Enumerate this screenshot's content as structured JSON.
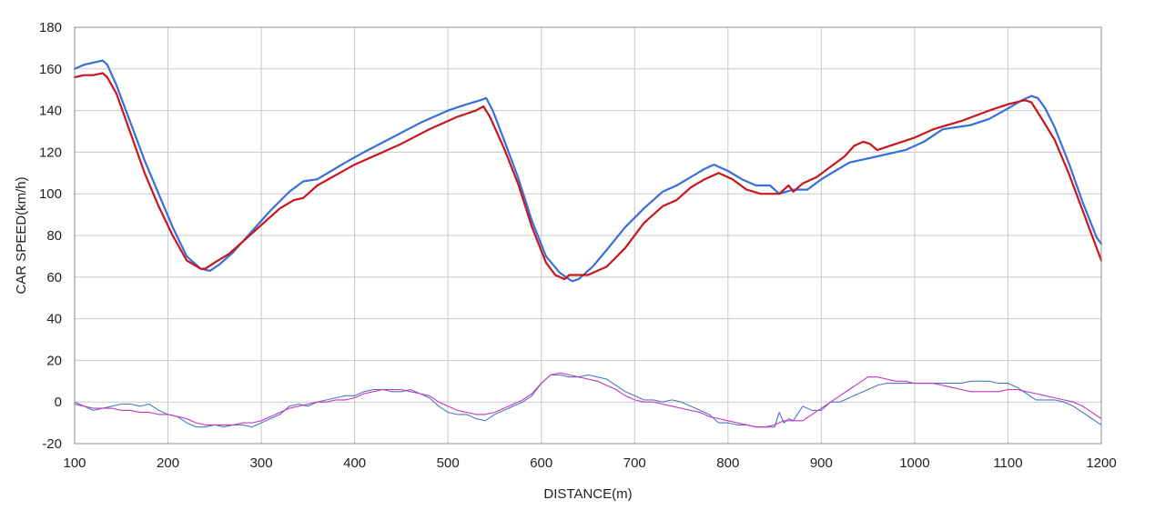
{
  "chart_data": {
    "type": "line",
    "title": "",
    "xlabel": "DISTANCE(m)",
    "ylabel": "CAR SPEED(km/h)",
    "xlim": [
      100,
      1200
    ],
    "ylim": [
      -20,
      180
    ],
    "xticks": [
      100,
      200,
      300,
      400,
      500,
      600,
      700,
      800,
      900,
      1000,
      1100,
      1200
    ],
    "yticks": [
      -20,
      0,
      20,
      40,
      60,
      80,
      100,
      120,
      140,
      160,
      180
    ],
    "xtick_labels": [
      "100",
      "200",
      "300",
      "400",
      "500",
      "600",
      "700",
      "800",
      "900",
      "1000",
      "1100",
      "1200"
    ],
    "ytick_labels": [
      "-20",
      "0",
      "20",
      "40",
      "60",
      "80",
      "100",
      "120",
      "140",
      "160",
      "180"
    ],
    "grid": true,
    "legend": "none",
    "series": [
      {
        "color": "#3a6fd8",
        "width": 2.2,
        "x": [
          100,
          110,
          120,
          130,
          135,
          145,
          160,
          175,
          190,
          205,
          220,
          235,
          245,
          255,
          270,
          290,
          310,
          330,
          345,
          360,
          375,
          390,
          410,
          440,
          470,
          500,
          520,
          535,
          541,
          548,
          560,
          575,
          590,
          605,
          620,
          633,
          640,
          655,
          670,
          690,
          710,
          730,
          745,
          760,
          775,
          785,
          800,
          815,
          830,
          845,
          855,
          870,
          885,
          900,
          915,
          930,
          960,
          990,
          1010,
          1030,
          1060,
          1080,
          1100,
          1115,
          1125,
          1132,
          1140,
          1150,
          1165,
          1180,
          1195,
          1200
        ],
        "y": [
          160,
          162,
          163,
          164,
          162,
          152,
          134,
          116,
          100,
          84,
          70,
          64,
          63,
          66,
          72,
          82,
          92,
          101,
          106,
          107,
          111,
          115,
          120,
          127,
          134,
          140,
          143,
          145,
          146,
          140,
          126,
          108,
          87,
          70,
          62,
          58,
          59,
          65,
          73,
          84,
          93,
          101,
          104,
          108,
          112,
          114,
          111,
          107,
          104,
          104,
          100,
          102,
          102,
          107,
          111,
          115,
          118,
          121,
          125,
          131,
          133,
          136,
          141,
          145,
          147,
          146,
          141,
          132,
          115,
          96,
          79,
          76
        ]
      },
      {
        "color": "#c8161e",
        "width": 2.2,
        "x": [
          100,
          110,
          120,
          130,
          135,
          145,
          160,
          175,
          190,
          205,
          220,
          235,
          240,
          250,
          265,
          280,
          300,
          320,
          335,
          345,
          360,
          380,
          400,
          420,
          450,
          480,
          510,
          530,
          538,
          545,
          560,
          575,
          590,
          605,
          615,
          625,
          630,
          640,
          650,
          660,
          670,
          690,
          710,
          730,
          745,
          760,
          775,
          790,
          805,
          820,
          835,
          850,
          855,
          860,
          865,
          870,
          880,
          895,
          910,
          925,
          935,
          945,
          952,
          960,
          980,
          1000,
          1020,
          1050,
          1080,
          1100,
          1118,
          1125,
          1135,
          1150,
          1165,
          1180,
          1195,
          1200
        ],
        "y": [
          156,
          157,
          157,
          158,
          156,
          148,
          129,
          110,
          94,
          80,
          68,
          64,
          64,
          67,
          71,
          77,
          85,
          93,
          97,
          98,
          104,
          109,
          114,
          118,
          124,
          131,
          137,
          140,
          142,
          137,
          122,
          105,
          84,
          67,
          61,
          59,
          61,
          61,
          61,
          63,
          65,
          74,
          86,
          94,
          97,
          103,
          107,
          110,
          107,
          102,
          100,
          100,
          100,
          102,
          104,
          101,
          105,
          108,
          113,
          118,
          123,
          125,
          124,
          121,
          124,
          127,
          131,
          135,
          140,
          143,
          145,
          144,
          137,
          126,
          110,
          92,
          74,
          68
        ]
      },
      {
        "color": "#4a78c0",
        "width": 1.1,
        "x": [
          100,
          110,
          120,
          130,
          140,
          150,
          160,
          170,
          180,
          190,
          200,
          210,
          220,
          230,
          240,
          250,
          260,
          270,
          280,
          290,
          300,
          310,
          320,
          330,
          340,
          350,
          360,
          370,
          380,
          390,
          400,
          410,
          420,
          430,
          440,
          450,
          460,
          470,
          480,
          490,
          500,
          510,
          520,
          530,
          540,
          550,
          560,
          570,
          580,
          590,
          600,
          610,
          620,
          630,
          640,
          650,
          660,
          670,
          680,
          690,
          700,
          710,
          720,
          730,
          740,
          750,
          760,
          770,
          780,
          790,
          800,
          810,
          820,
          830,
          840,
          850,
          855,
          860,
          865,
          870,
          880,
          890,
          900,
          910,
          920,
          930,
          940,
          950,
          960,
          970,
          980,
          990,
          1000,
          1010,
          1020,
          1030,
          1040,
          1050,
          1060,
          1070,
          1080,
          1090,
          1100,
          1110,
          1120,
          1130,
          1140,
          1150,
          1160,
          1170,
          1180,
          1190,
          1200
        ],
        "y": [
          0,
          -2,
          -4,
          -3,
          -2,
          -1,
          -1,
          -2,
          -1,
          -4,
          -6,
          -7,
          -10,
          -12,
          -12,
          -11,
          -12,
          -11,
          -11,
          -12,
          -10,
          -8,
          -6,
          -2,
          -1,
          -2,
          0,
          1,
          2,
          3,
          3,
          5,
          6,
          6,
          5,
          5,
          6,
          4,
          2,
          -2,
          -5,
          -6,
          -6,
          -8,
          -9,
          -6,
          -4,
          -2,
          0,
          3,
          9,
          13,
          13,
          12,
          12,
          13,
          12,
          11,
          8,
          5,
          3,
          1,
          1,
          0,
          1,
          0,
          -2,
          -4,
          -6,
          -10,
          -10,
          -11,
          -11,
          -12,
          -12,
          -12,
          -5,
          -10,
          -8,
          -9,
          -2,
          -4,
          -4,
          0,
          0,
          2,
          4,
          6,
          8,
          9,
          9,
          9,
          9,
          9,
          9,
          9,
          9,
          9,
          10,
          10,
          10,
          9,
          9,
          7,
          4,
          1,
          1,
          1,
          0,
          -2,
          -5,
          -8,
          -11
        ]
      },
      {
        "color": "#c534c0",
        "width": 1.1,
        "x": [
          100,
          110,
          120,
          130,
          140,
          150,
          160,
          170,
          180,
          190,
          200,
          210,
          220,
          230,
          240,
          250,
          260,
          270,
          280,
          290,
          300,
          310,
          320,
          330,
          340,
          350,
          360,
          370,
          380,
          390,
          400,
          410,
          420,
          430,
          440,
          450,
          460,
          470,
          480,
          490,
          500,
          510,
          520,
          530,
          540,
          550,
          560,
          570,
          580,
          590,
          600,
          610,
          620,
          630,
          640,
          650,
          660,
          670,
          680,
          690,
          700,
          710,
          720,
          730,
          740,
          750,
          760,
          770,
          780,
          790,
          800,
          810,
          820,
          830,
          840,
          850,
          860,
          870,
          880,
          890,
          900,
          910,
          920,
          930,
          940,
          950,
          960,
          970,
          980,
          990,
          1000,
          1010,
          1020,
          1030,
          1040,
          1050,
          1060,
          1070,
          1080,
          1090,
          1100,
          1110,
          1120,
          1130,
          1140,
          1150,
          1160,
          1170,
          1180,
          1190,
          1200
        ],
        "y": [
          -1,
          -2,
          -3,
          -3,
          -3,
          -4,
          -4,
          -5,
          -5,
          -6,
          -6,
          -7,
          -8,
          -10,
          -11,
          -11,
          -11,
          -11,
          -10,
          -10,
          -9,
          -7,
          -5,
          -3,
          -2,
          -1,
          0,
          0,
          1,
          1,
          2,
          4,
          5,
          6,
          6,
          6,
          5,
          4,
          3,
          0,
          -2,
          -4,
          -5,
          -6,
          -6,
          -5,
          -3,
          -1,
          1,
          4,
          9,
          13,
          14,
          13,
          12,
          11,
          10,
          8,
          6,
          3,
          1,
          0,
          0,
          -1,
          -2,
          -3,
          -4,
          -5,
          -7,
          -8,
          -9,
          -10,
          -11,
          -12,
          -12,
          -11,
          -9,
          -9,
          -9,
          -6,
          -3,
          0,
          3,
          6,
          9,
          12,
          12,
          11,
          10,
          10,
          9,
          9,
          9,
          8,
          7,
          6,
          5,
          5,
          5,
          5,
          6,
          6,
          5,
          4,
          3,
          2,
          1,
          0,
          -2,
          -5,
          -8
        ]
      }
    ]
  }
}
